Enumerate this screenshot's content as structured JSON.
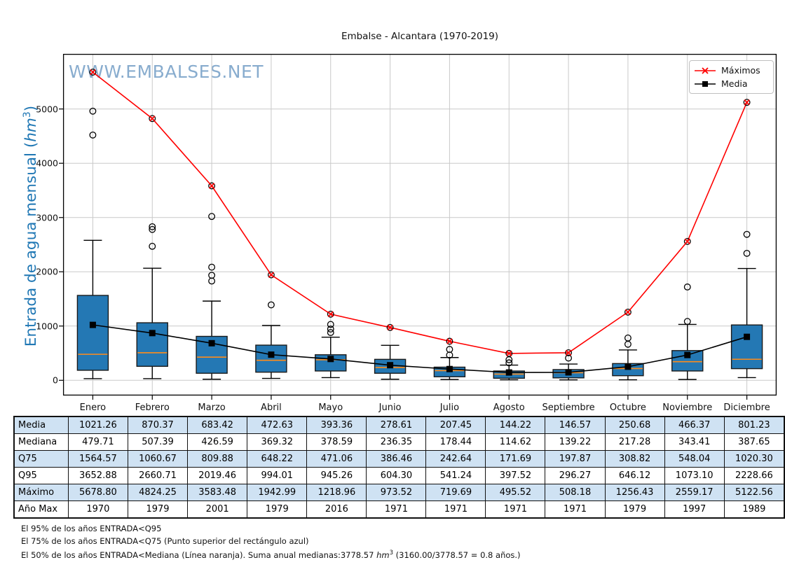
{
  "watermark": "WWW.EMBALSES.NET",
  "chart_data": {
    "type": "boxplot",
    "title": "Embalse - Alcantara (1970-2019)",
    "categories": [
      "Enero",
      "Febrero",
      "Marzo",
      "Abril",
      "Mayo",
      "Junio",
      "Julio",
      "Agosto",
      "Septiembre",
      "Octubre",
      "Noviembre",
      "Diciembre"
    ],
    "ylabel": "Entrada de agua mensual (hm3)",
    "ylabel_parts": {
      "pre": "Entrada de agua mensual (",
      "unit": "hm",
      "exp": "3",
      "post": ")"
    },
    "yticks": [
      0,
      1000,
      2000,
      3000,
      4000,
      5000
    ],
    "ylim": [
      -280,
      6020
    ],
    "grid": true,
    "legend_position": "upper right",
    "legend": [
      {
        "label": "Máximos",
        "color": "#ff0000",
        "marker": "x"
      },
      {
        "label": "Media",
        "color": "#000000",
        "marker": "square"
      }
    ],
    "series": {
      "maximos": [
        5678.8,
        4824.25,
        3583.48,
        1942.99,
        1218.96,
        973.52,
        719.69,
        495.52,
        508.18,
        1256.43,
        2559.17,
        5122.56
      ],
      "media": [
        1021.26,
        870.37,
        683.42,
        472.63,
        393.36,
        278.61,
        207.45,
        144.22,
        146.57,
        250.68,
        466.37,
        801.23
      ],
      "mediana": [
        479.71,
        507.39,
        426.59,
        369.32,
        378.59,
        236.35,
        178.44,
        114.62,
        139.22,
        217.28,
        343.41,
        387.65
      ],
      "q75": [
        1564.57,
        1060.67,
        809.88,
        648.22,
        471.06,
        386.46,
        242.64,
        171.69,
        197.87,
        308.82,
        548.04,
        1020.3
      ],
      "q95": [
        3652.88,
        2660.71,
        2019.46,
        994.01,
        945.26,
        604.3,
        541.24,
        397.52,
        296.27,
        646.12,
        1073.1,
        2228.66
      ],
      "anio_max": [
        1970,
        1979,
        2001,
        1979,
        2016,
        1971,
        1971,
        1971,
        1971,
        1979,
        1997,
        1989
      ]
    },
    "box_whiskers": [
      {
        "low": 30,
        "q1": 185,
        "high": 2580,
        "outliers": [
          4520,
          4960
        ]
      },
      {
        "low": 30,
        "q1": 258,
        "high": 2065,
        "outliers": [
          2470,
          2780,
          2830
        ]
      },
      {
        "low": 20,
        "q1": 130,
        "high": 1460,
        "outliers": [
          1830,
          1935,
          2085,
          3020
        ]
      },
      {
        "low": 35,
        "q1": 150,
        "high": 1010,
        "outliers": [
          1390
        ]
      },
      {
        "low": 50,
        "q1": 172,
        "high": 795,
        "outliers": [
          880,
          945,
          1030
        ]
      },
      {
        "low": 20,
        "q1": 130,
        "high": 645,
        "outliers": []
      },
      {
        "low": 15,
        "q1": 65,
        "high": 420,
        "outliers": [
          465,
          570
        ]
      },
      {
        "low": 10,
        "q1": 38,
        "high": 280,
        "outliers": [
          322,
          380
        ]
      },
      {
        "low": 8,
        "q1": 45,
        "high": 300,
        "outliers": [
          410
        ]
      },
      {
        "low": 10,
        "q1": 85,
        "high": 560,
        "outliers": [
          665,
          780
        ]
      },
      {
        "low": 15,
        "q1": 172,
        "high": 1030,
        "outliers": [
          1085,
          1720
        ]
      },
      {
        "low": 50,
        "q1": 215,
        "high": 2060,
        "outliers": [
          2340,
          2690
        ]
      }
    ],
    "colors": {
      "box_fill": "#2478b4",
      "median": "#ff8c1a",
      "max_line": "#ff0000",
      "mean_line": "#000000",
      "grid": "#c9c9c9",
      "watermark": "#82a8cc",
      "ylabel": "#1f77b4"
    }
  },
  "table": {
    "stripe_color": "#cfe2f3",
    "row_labels": [
      "Media",
      "Mediana",
      "Q75",
      "Q95",
      "Máximo",
      "Año Max"
    ],
    "rows": [
      [
        "1021.26",
        "870.37",
        "683.42",
        "472.63",
        "393.36",
        "278.61",
        "207.45",
        "144.22",
        "146.57",
        "250.68",
        "466.37",
        "801.23"
      ],
      [
        "479.71",
        "507.39",
        "426.59",
        "369.32",
        "378.59",
        "236.35",
        "178.44",
        "114.62",
        "139.22",
        "217.28",
        "343.41",
        "387.65"
      ],
      [
        "1564.57",
        "1060.67",
        "809.88",
        "648.22",
        "471.06",
        "386.46",
        "242.64",
        "171.69",
        "197.87",
        "308.82",
        "548.04",
        "1020.30"
      ],
      [
        "3652.88",
        "2660.71",
        "2019.46",
        "994.01",
        "945.26",
        "604.30",
        "541.24",
        "397.52",
        "296.27",
        "646.12",
        "1073.10",
        "2228.66"
      ],
      [
        "5678.80",
        "4824.25",
        "3583.48",
        "1942.99",
        "1218.96",
        "973.52",
        "719.69",
        "495.52",
        "508.18",
        "1256.43",
        "2559.17",
        "5122.56"
      ],
      [
        "1970",
        "1979",
        "2001",
        "1979",
        "2016",
        "1971",
        "1971",
        "1971",
        "1971",
        "1979",
        "1997",
        "1989"
      ]
    ]
  },
  "footer": {
    "line1": "El 95% de los años ENTRADA<Q95",
    "line2": "El 75% de los años ENTRADA<Q75 (Punto superior del rectángulo azul)",
    "line3_pre": "El 50% de los años ENTRADA<Mediana (Línea naranja). Suma anual medianas:3778.57 ",
    "line3_unit": "hm",
    "line3_exp": "3",
    "line3_post": " (3160.00/3778.57 = 0.8 años.)"
  }
}
